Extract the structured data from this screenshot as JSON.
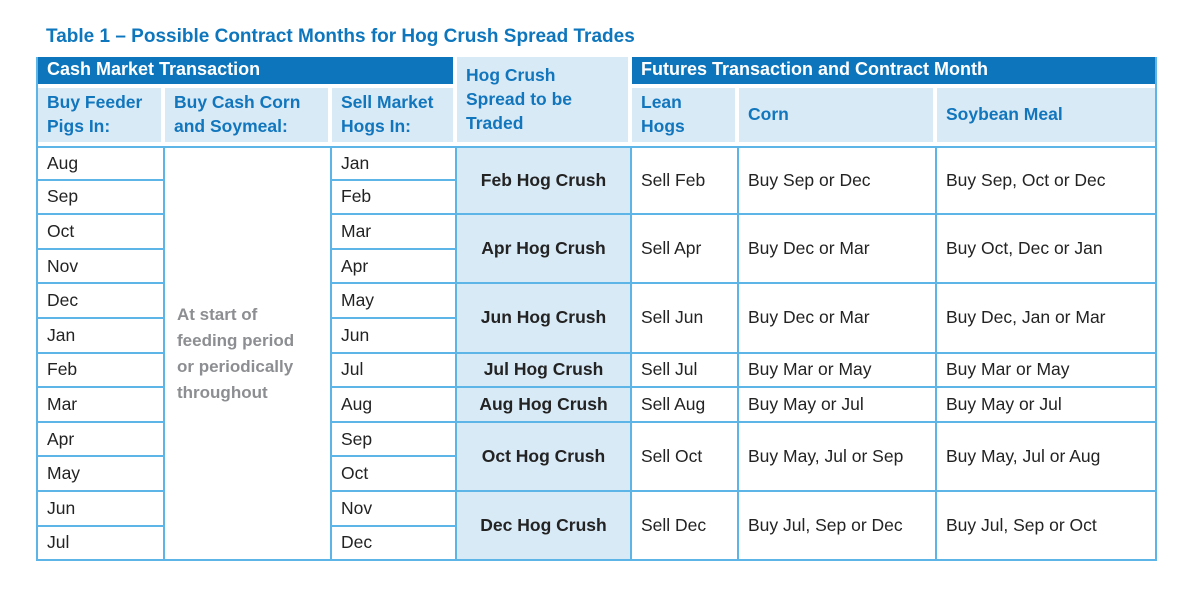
{
  "title": "Table 1 – Possible Contract Months for Hog Crush Spread Trades",
  "colors": {
    "header_dark_blue": "#0c75bb",
    "cell_light_blue": "#d9eaf7",
    "border_blue": "#5cb5e6",
    "text_blue": "#1276bd",
    "note_gray": "#8c8e91"
  },
  "table": {
    "header_groups": {
      "cash": "Cash Market Transaction",
      "hog_crush": "Hog Crush Spread to be Traded",
      "futures": "Futures Transaction and Contract Month"
    },
    "sub_headers": [
      "Buy Feeder Pigs In:",
      "Buy Cash Corn and Soymeal:",
      "Sell Market Hogs In:",
      "Lean Hogs",
      "Corn",
      "Soybean Meal"
    ],
    "feeder_months": [
      "Aug",
      "Sep",
      "Oct",
      "Nov",
      "Dec",
      "Jan",
      "Feb",
      "Mar",
      "Apr",
      "May",
      "Jun",
      "Jul"
    ],
    "corn_soymeal_note": "At start of feeding period or periodically throughout",
    "market_months": [
      "Jan",
      "Feb",
      "Mar",
      "Apr",
      "May",
      "Jun",
      "Jul",
      "Aug",
      "Sep",
      "Oct",
      "Nov",
      "Dec"
    ],
    "spreads": [
      {
        "name": "Feb Hog Crush",
        "rows": 2,
        "lean_hogs": "Sell Feb",
        "corn": "Buy Sep or Dec",
        "soybean_meal": "Buy Sep, Oct or Dec"
      },
      {
        "name": "Apr Hog Crush",
        "rows": 2,
        "lean_hogs": "Sell Apr",
        "corn": "Buy Dec or Mar",
        "soybean_meal": "Buy Oct, Dec or Jan"
      },
      {
        "name": "Jun Hog Crush",
        "rows": 2,
        "lean_hogs": "Sell Jun",
        "corn": "Buy Dec or Mar",
        "soybean_meal": "Buy Dec, Jan or Mar"
      },
      {
        "name": "Jul Hog Crush",
        "rows": 1,
        "lean_hogs": "Sell Jul",
        "corn": "Buy Mar or May",
        "soybean_meal": "Buy Mar or May"
      },
      {
        "name": "Aug Hog Crush",
        "rows": 1,
        "lean_hogs": "Sell Aug",
        "corn": "Buy May or Jul",
        "soybean_meal": "Buy May or Jul"
      },
      {
        "name": "Oct Hog Crush",
        "rows": 2,
        "lean_hogs": "Sell Oct",
        "corn": "Buy May, Jul or Sep",
        "soybean_meal": "Buy May, Jul or Aug"
      },
      {
        "name": "Dec Hog Crush",
        "rows": 2,
        "lean_hogs": "Sell Dec",
        "corn": "Buy Jul, Sep or Dec",
        "soybean_meal": "Buy Jul, Sep or Oct"
      }
    ]
  }
}
